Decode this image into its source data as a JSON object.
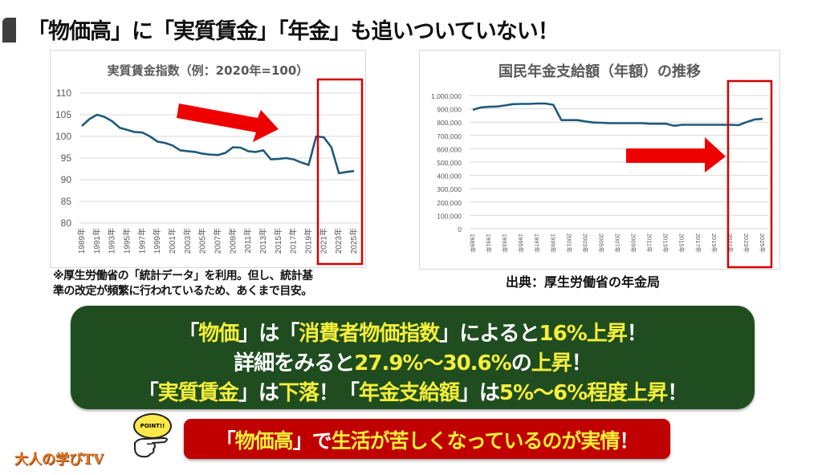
{
  "header": {
    "title": "「物価高」に「実質賃金」「年金」も追いついていない！"
  },
  "left_chart": {
    "title": "実質賃金指数（例：2020年=100）",
    "note_line1": "※厚生労働省の「統計データ」を利用。但し、統計基",
    "note_line2": "準の改定が頻繁に行われているため、あくまで目安。"
  },
  "right_chart": {
    "title": "国民年金支給額（年額）の推移",
    "source": "出典：厚生労働省の年金局"
  },
  "summary": {
    "line1": {
      "p1": "「",
      "h1": "物価",
      "p2": "」は「",
      "h2": "消費者物価指数",
      "p3": "」によると",
      "h3": "16%上昇",
      "p4": "！"
    },
    "line2": {
      "p1": "詳細をみると",
      "h1": "27.9%〜30.6%",
      "p2": "の",
      "h2": "上昇",
      "p3": "！"
    },
    "line3": {
      "p1": "「",
      "h1": "実質賃金",
      "p2": "」は",
      "h2": "下落",
      "p3": "！「",
      "h3": "年金支給額",
      "p4": "」は",
      "h4": "5%〜6%程度上昇",
      "p5": "！"
    }
  },
  "conclusion": {
    "p1": "「",
    "h1": "物価高",
    "p2": "」で",
    "h2": "生活が苦しくなっているのが",
    "h3": "実情",
    "p3": "！"
  },
  "point_badge": "POINT!!",
  "logo": "大人の学びTV",
  "colors": {
    "accent_red": "#c00000",
    "highlight_yellow": "#f6ef3a",
    "box_green": "#1f4d20",
    "line_blue": "#1f5a7a",
    "arrow_red": "#ee0000"
  },
  "chart_data": [
    {
      "type": "line",
      "title": "実質賃金指数（例：2020年=100）",
      "xlabel": "",
      "ylabel": "",
      "ylim": [
        80,
        110
      ],
      "yticks": [
        80,
        85,
        90,
        95,
        100,
        105,
        110
      ],
      "xtick_labels": [
        "1989年",
        "1991年",
        "1993年",
        "1995年",
        "1997年",
        "1999年",
        "2001年",
        "2003年",
        "2005年",
        "2007年",
        "2009年",
        "2011年",
        "2013年",
        "2015年",
        "2017年",
        "2019年",
        "2021年",
        "2023年",
        "2025年"
      ],
      "x": [
        1989,
        1990,
        1991,
        1992,
        1993,
        1994,
        1995,
        1996,
        1997,
        1998,
        1999,
        2000,
        2001,
        2002,
        2003,
        2004,
        2005,
        2006,
        2007,
        2008,
        2009,
        2010,
        2011,
        2012,
        2013,
        2014,
        2015,
        2016,
        2017,
        2018,
        2019,
        2020,
        2021,
        2022,
        2023,
        2024,
        2025
      ],
      "series": [
        {
          "name": "実質賃金指数",
          "values": [
            102.4,
            104.0,
            105.0,
            104.5,
            103.5,
            102.0,
            101.5,
            101.0,
            100.9,
            100.0,
            98.8,
            98.5,
            97.9,
            96.8,
            96.6,
            96.4,
            96.0,
            95.8,
            95.7,
            96.2,
            97.5,
            97.4,
            96.6,
            96.4,
            96.8,
            94.7,
            94.8,
            95.0,
            94.7,
            94.0,
            93.4,
            100.0,
            99.8,
            97.5,
            91.5,
            91.8,
            92.0
          ]
        }
      ],
      "grid": true,
      "annotations": [
        "red downward arrow 2003-2015",
        "red highlight box 2020-2025"
      ]
    },
    {
      "type": "line",
      "title": "国民年金支給額（年額）の推移",
      "xlabel": "",
      "ylabel": "",
      "ylim": [
        0,
        1000000
      ],
      "yticks": [
        0,
        100000,
        200000,
        300000,
        400000,
        500000,
        600000,
        700000,
        800000,
        900000,
        1000000
      ],
      "ytick_labels": [
        "0",
        "100,000",
        "200,000",
        "300,000",
        "400,000",
        "500,000",
        "600,000",
        "700,000",
        "800,000",
        "900,000",
        "1,000,000"
      ],
      "xtick_labels": [
        "1989年",
        "1991年",
        "1993年",
        "1995年",
        "1997年",
        "1999年",
        "2001年",
        "2003年",
        "2005年",
        "2007年",
        "2009年",
        "2011年",
        "2013年",
        "2015年",
        "2017年",
        "2019年",
        "2021年",
        "2023年",
        "2025年"
      ],
      "x": [
        1989,
        1990,
        1991,
        1992,
        1993,
        1994,
        1995,
        1996,
        1997,
        1998,
        1999,
        2000,
        2001,
        2002,
        2003,
        2004,
        2005,
        2006,
        2007,
        2008,
        2009,
        2010,
        2011,
        2012,
        2013,
        2014,
        2015,
        2016,
        2017,
        2018,
        2019,
        2020,
        2021,
        2022,
        2023,
        2024,
        2025
      ],
      "series": [
        {
          "name": "国民年金支給額",
          "values": [
            892000,
            910000,
            915000,
            917000,
            925000,
            935000,
            937000,
            937000,
            940000,
            940000,
            930000,
            815000,
            815000,
            815000,
            805000,
            797000,
            795000,
            792000,
            792000,
            792000,
            792000,
            792000,
            788000,
            788000,
            788000,
            772000,
            780000,
            780000,
            780000,
            780000,
            780000,
            780000,
            780000,
            777000,
            800000,
            820000,
            825000
          ]
        }
      ],
      "grid": true,
      "annotations": [
        "red rightward arrow",
        "red highlight box 2020-2025"
      ]
    }
  ]
}
